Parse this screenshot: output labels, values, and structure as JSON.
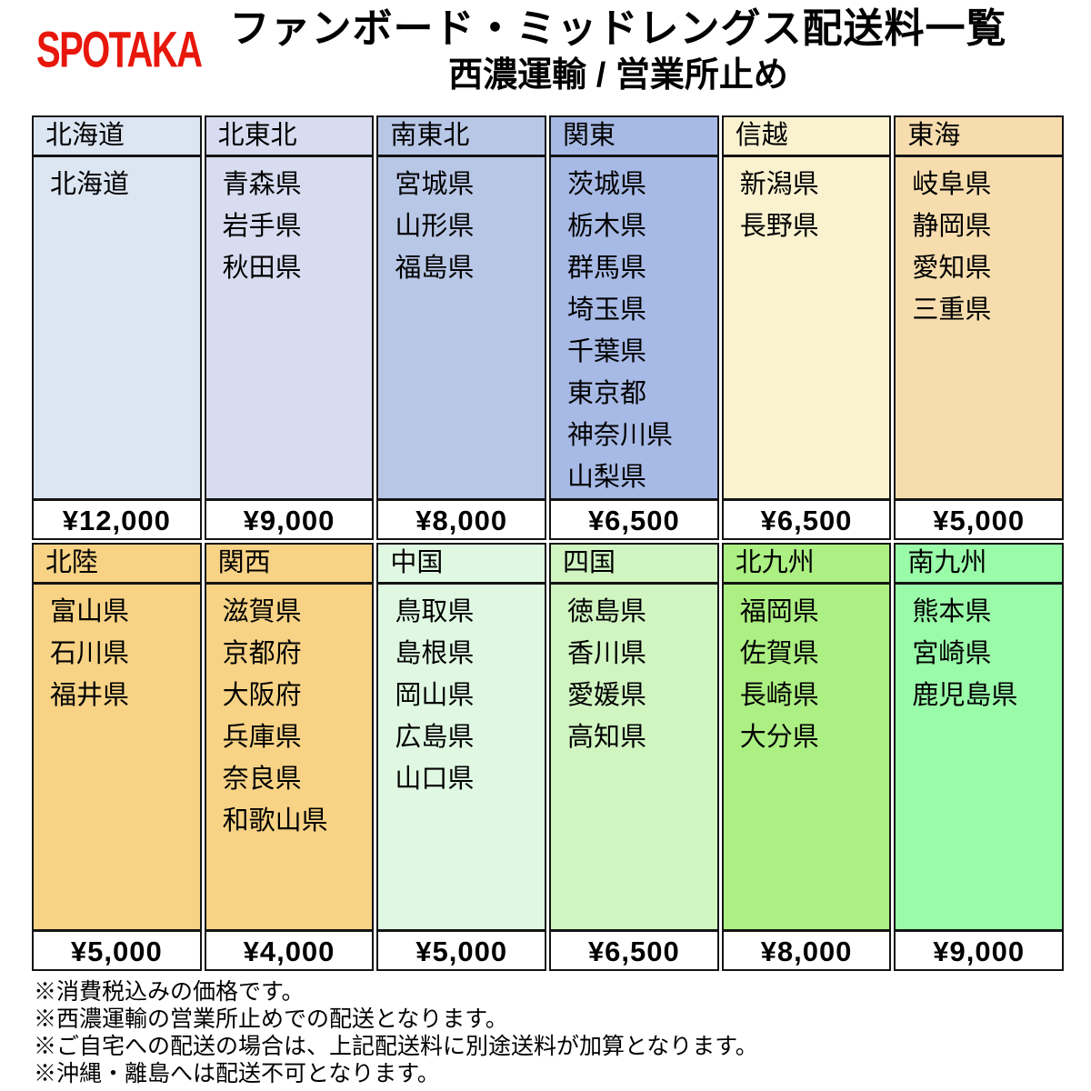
{
  "header": {
    "logo": "SPOTAKA",
    "title_line1": "ファンボード・ミッドレングス配送料一覧",
    "title_line2": "西濃運輸 / 営業所止め"
  },
  "colors": {
    "logo_red": "#e8170c",
    "border": "#141414",
    "price_bg": "#ffffff"
  },
  "table": {
    "groups": [
      {
        "columns": [
          {
            "region": "北海道",
            "prefectures": [
              "北海道"
            ],
            "price": "¥12,000",
            "color": "#dce5f2"
          },
          {
            "region": "北東北",
            "prefectures": [
              "青森県",
              "岩手県",
              "秋田県"
            ],
            "price": "¥9,000",
            "color": "#d8dcf0"
          },
          {
            "region": "南東北",
            "prefectures": [
              "宮城県",
              "山形県",
              "福島県"
            ],
            "price": "¥8,000",
            "color": "#b9c7e7"
          },
          {
            "region": "関東",
            "prefectures": [
              "茨城県",
              "栃木県",
              "群馬県",
              "埼玉県",
              "千葉県",
              "東京都",
              "神奈川県",
              "山梨県"
            ],
            "price": "¥6,500",
            "color": "#a7bae6"
          },
          {
            "region": "信越",
            "prefectures": [
              "新潟県",
              "長野県"
            ],
            "price": "¥6,500",
            "color": "#faf2cf"
          },
          {
            "region": "東海",
            "prefectures": [
              "岐阜県",
              "静岡県",
              "愛知県",
              "三重県"
            ],
            "price": "¥5,000",
            "color": "#f7ddae"
          }
        ]
      },
      {
        "columns": [
          {
            "region": "北陸",
            "prefectures": [
              "富山県",
              "石川県",
              "福井県"
            ],
            "price": "¥5,000",
            "color": "#f8d385"
          },
          {
            "region": "関西",
            "prefectures": [
              "滋賀県",
              "京都府",
              "大阪府",
              "兵庫県",
              "奈良県",
              "和歌山県"
            ],
            "price": "¥4,000",
            "color": "#f8d385"
          },
          {
            "region": "中国",
            "prefectures": [
              "鳥取県",
              "島根県",
              "岡山県",
              "広島県",
              "山口県"
            ],
            "price": "¥5,000",
            "color": "#e0f8e2"
          },
          {
            "region": "四国",
            "prefectures": [
              "徳島県",
              "香川県",
              "愛媛県",
              "高知県"
            ],
            "price": "¥6,500",
            "color": "#d0f5c1"
          },
          {
            "region": "北九州",
            "prefectures": [
              "福岡県",
              "佐賀県",
              "長崎県",
              "大分県"
            ],
            "price": "¥8,000",
            "color": "#acef83"
          },
          {
            "region": "南九州",
            "prefectures": [
              "熊本県",
              "宮崎県",
              "鹿児島県"
            ],
            "price": "¥9,000",
            "color": "#9afba9"
          }
        ]
      }
    ]
  },
  "notes": [
    "※消費税込みの価格です。",
    "※西濃運輸の営業所止めでの配送となります。",
    "※ご自宅への配送の場合は、上記配送料に別途送料が加算となります。",
    "※沖縄・離島へは配送不可となります。"
  ]
}
